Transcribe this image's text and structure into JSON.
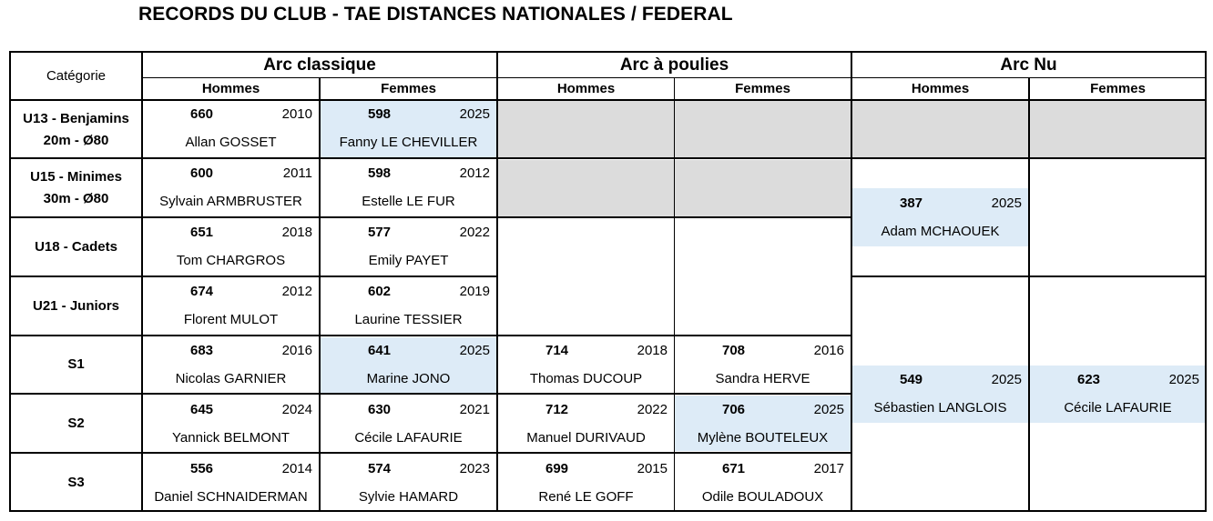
{
  "title": "RECORDS DU CLUB - TAE DISTANCES NATIONALES / FEDERAL",
  "header": {
    "category_label": "Catégorie",
    "groups": [
      "Arc classique",
      "Arc à poulies",
      "Arc Nu"
    ],
    "genders": [
      "Hommes",
      "Femmes",
      "Hommes",
      "Femmes",
      "Hommes",
      "Femmes"
    ]
  },
  "categories": [
    {
      "line1": "U13 - Benjamins",
      "line2": "20m - Ø80"
    },
    {
      "line1": "U15 - Minimes",
      "line2": "30m - Ø80"
    },
    {
      "line1": "U18 - Cadets",
      "line2": ""
    },
    {
      "line1": "U21 - Juniors",
      "line2": ""
    },
    {
      "line1": "S1",
      "line2": ""
    },
    {
      "line1": "S2",
      "line2": ""
    },
    {
      "line1": "S3",
      "line2": ""
    }
  ],
  "records": {
    "u13_ch": {
      "score": "660",
      "year": "2010",
      "name": "Allan GOSSET"
    },
    "u13_cf": {
      "score": "598",
      "year": "2025",
      "name": "Fanny LE CHEVILLER"
    },
    "u15_ch": {
      "score": "600",
      "year": "2011",
      "name": "Sylvain ARMBRUSTER"
    },
    "u15_cf": {
      "score": "598",
      "year": "2012",
      "name": "Estelle LE FUR"
    },
    "u18_ch": {
      "score": "651",
      "year": "2018",
      "name": "Tom CHARGROS"
    },
    "u18_cf": {
      "score": "577",
      "year": "2022",
      "name": "Emily PAYET"
    },
    "u21_ch": {
      "score": "674",
      "year": "2012",
      "name": "Florent MULOT"
    },
    "u21_cf": {
      "score": "602",
      "year": "2019",
      "name": "Laurine TESSIER"
    },
    "s1_ch": {
      "score": "683",
      "year": "2016",
      "name": "Nicolas GARNIER"
    },
    "s1_cf": {
      "score": "641",
      "year": "2025",
      "name": "Marine JONO"
    },
    "s1_ph": {
      "score": "714",
      "year": "2018",
      "name": "Thomas DUCOUP"
    },
    "s1_pf": {
      "score": "708",
      "year": "2016",
      "name": "Sandra HERVE"
    },
    "s2_ch": {
      "score": "645",
      "year": "2024",
      "name": "Yannick BELMONT"
    },
    "s2_cf": {
      "score": "630",
      "year": "2021",
      "name": "Cécile LAFAURIE"
    },
    "s2_ph": {
      "score": "712",
      "year": "2022",
      "name": "Manuel DURIVAUD"
    },
    "s2_pf": {
      "score": "706",
      "year": "2025",
      "name": "Mylène BOUTELEUX"
    },
    "s3_ch": {
      "score": "556",
      "year": "2014",
      "name": "Daniel SCHNAIDERMAN"
    },
    "s3_cf": {
      "score": "574",
      "year": "2023",
      "name": "Sylvie HAMARD"
    },
    "s3_ph": {
      "score": "699",
      "year": "2015",
      "name": "René LE GOFF"
    },
    "s3_pf": {
      "score": "671",
      "year": "2017",
      "name": "Odile BOULADOUX"
    },
    "nu_jeunes_h": {
      "score": "387",
      "year": "2025",
      "name": "Adam MCHAOUEK"
    },
    "nu_senior_h": {
      "score": "549",
      "year": "2025",
      "name": "Sébastien LANGLOIS"
    },
    "nu_senior_f": {
      "score": "623",
      "year": "2025",
      "name": "Cécile LAFAURIE"
    }
  },
  "colors": {
    "new_record": "#ddebf7",
    "not_applicable": "#dcdcdc",
    "border": "#000000"
  }
}
